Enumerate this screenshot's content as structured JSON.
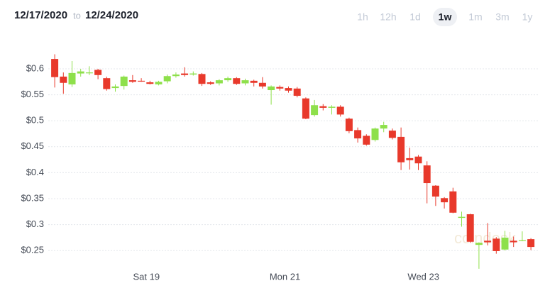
{
  "date_range": {
    "from": "12/17/2020",
    "separator": "to",
    "to": "12/24/2020"
  },
  "timeframes": {
    "options": [
      "1h",
      "12h",
      "1d",
      "1w",
      "1m",
      "3m",
      "1y"
    ],
    "selected": "1w"
  },
  "chart_data": {
    "type": "candlestick",
    "watermark": "coindesk",
    "categories": [
      null,
      null,
      null,
      null,
      null,
      null,
      null,
      null,
      null,
      null,
      null,
      "Sat 19",
      null,
      null,
      null,
      null,
      null,
      null,
      null,
      null,
      null,
      null,
      null,
      null,
      null,
      null,
      null,
      "Mon 21",
      null,
      null,
      null,
      null,
      null,
      null,
      null,
      null,
      null,
      null,
      null,
      null,
      null,
      null,
      null,
      "Wed 23",
      null,
      null,
      null,
      null,
      null,
      null,
      null,
      null,
      null,
      null,
      null,
      null
    ],
    "series": [
      {
        "open": [
          0.619,
          0.585,
          0.57,
          0.591,
          0.592,
          0.598,
          0.582,
          0.563,
          0.567,
          0.578,
          0.577,
          0.574,
          0.57,
          0.576,
          0.586,
          0.591,
          0.589,
          0.59,
          0.574,
          0.572,
          0.578,
          0.582,
          0.572,
          0.577,
          0.573,
          0.559,
          0.565,
          0.563,
          0.562,
          0.543,
          0.511,
          0.528,
          0.525,
          0.527,
          0.504,
          0.482,
          0.471,
          0.463,
          0.485,
          0.481,
          0.469,
          0.428,
          0.431,
          0.414,
          0.375,
          0.351,
          0.364,
          0.313,
          0.32,
          0.261,
          0.269,
          0.273,
          0.252,
          0.269,
          0.269,
          0.272
        ],
        "high": [
          0.628,
          0.593,
          0.615,
          0.6,
          0.605,
          0.6,
          0.585,
          0.57,
          0.587,
          0.588,
          0.582,
          0.577,
          0.577,
          0.589,
          0.593,
          0.603,
          0.595,
          0.592,
          0.576,
          0.58,
          0.585,
          0.584,
          0.581,
          0.579,
          0.584,
          0.568,
          0.568,
          0.566,
          0.565,
          0.545,
          0.54,
          0.532,
          0.53,
          0.53,
          0.506,
          0.487,
          0.474,
          0.487,
          0.498,
          0.485,
          0.487,
          0.448,
          0.434,
          0.422,
          0.376,
          0.353,
          0.371,
          0.325,
          0.321,
          0.266,
          0.303,
          0.276,
          0.288,
          0.277,
          0.287,
          0.274
        ],
        "low": [
          0.564,
          0.552,
          0.565,
          0.585,
          0.588,
          0.58,
          0.558,
          0.556,
          0.56,
          0.573,
          0.575,
          0.57,
          0.568,
          0.572,
          0.583,
          0.585,
          0.587,
          0.567,
          0.569,
          0.568,
          0.575,
          0.569,
          0.568,
          0.566,
          0.562,
          0.531,
          0.558,
          0.554,
          0.545,
          0.503,
          0.508,
          0.52,
          0.512,
          0.508,
          0.476,
          0.458,
          0.452,
          0.46,
          0.478,
          0.464,
          0.405,
          0.406,
          0.405,
          0.341,
          0.336,
          0.331,
          0.322,
          0.296,
          0.265,
          0.215,
          0.26,
          0.244,
          0.25,
          0.257,
          0.268,
          0.251
        ],
        "close": [
          0.584,
          0.573,
          0.592,
          0.595,
          0.593,
          0.588,
          0.561,
          0.566,
          0.585,
          0.575,
          0.576,
          0.571,
          0.575,
          0.586,
          0.589,
          0.588,
          0.591,
          0.571,
          0.571,
          0.578,
          0.582,
          0.571,
          0.578,
          0.573,
          0.566,
          0.566,
          0.562,
          0.558,
          0.548,
          0.504,
          0.53,
          0.525,
          0.527,
          0.512,
          0.48,
          0.466,
          0.454,
          0.485,
          0.492,
          0.467,
          0.42,
          0.424,
          0.418,
          0.38,
          0.354,
          0.343,
          0.323,
          0.315,
          0.267,
          0.265,
          0.266,
          0.249,
          0.275,
          0.266,
          0.27,
          0.257
        ]
      }
    ],
    "up_color": "#8ee04b",
    "down_color": "#e8392b",
    "ylim": [
      0.21,
      0.65
    ],
    "yticks": [
      {
        "value": 0.25,
        "label": "$0.25"
      },
      {
        "value": 0.3,
        "label": "$0.3"
      },
      {
        "value": 0.35,
        "label": "$0.35"
      },
      {
        "value": 0.4,
        "label": "$0.4"
      },
      {
        "value": 0.45,
        "label": "$0.45"
      },
      {
        "value": 0.5,
        "label": "$0.5"
      },
      {
        "value": 0.55,
        "label": "$0.55"
      },
      {
        "value": 0.6,
        "label": "$0.6"
      }
    ],
    "grid": true
  }
}
